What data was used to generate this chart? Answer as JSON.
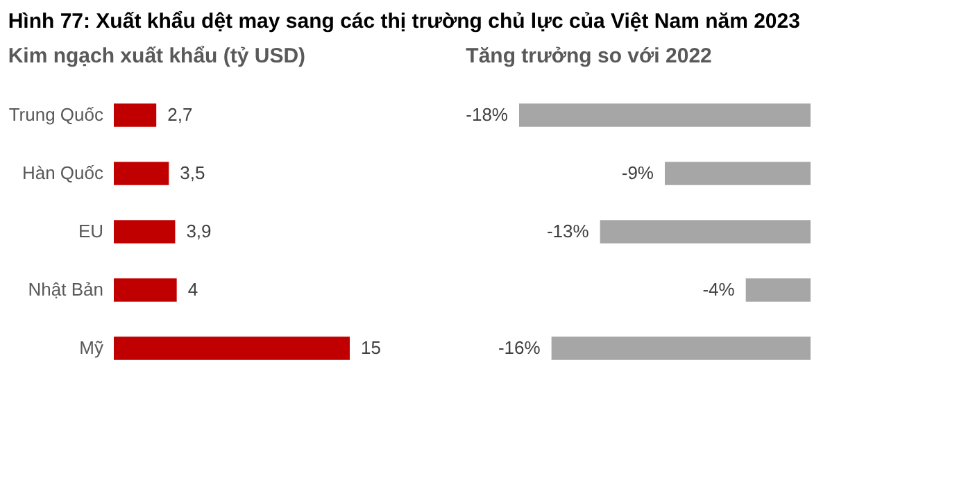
{
  "chart_data": [
    {
      "type": "bar",
      "orientation": "horizontal",
      "title": "Hình 77: Xuất khẩu dệt may sang các thị trường chủ lực của Việt Nam năm 2023",
      "subtitle": "Kim ngạch xuất khẩu (tỷ USD)",
      "categories": [
        "Trung Quốc",
        "Hàn Quốc",
        "EU",
        "Nhật Bản",
        "Mỹ"
      ],
      "series": [
        {
          "color": "#c00000",
          "values": [
            2.7,
            3.5,
            3.9,
            4,
            15
          ],
          "value_labels": [
            "2,7",
            "3,5",
            "3,9",
            "4",
            "15"
          ]
        }
      ],
      "tick_labels": "x",
      "grid": false
    },
    {
      "type": "bar",
      "orientation": "horizontal",
      "title": "Tăng trưởng so với 2022",
      "categories": [
        null,
        null,
        null,
        null,
        null
      ],
      "series": [
        {
          "color": "#a6a6a6",
          "values": [
            -18,
            -9,
            -13,
            -4,
            -16
          ],
          "value_labels": [
            "-18%",
            "-9%",
            "-13%",
            "-4%",
            "-16%"
          ]
        }
      ],
      "tick_labels": false,
      "grid": false
    }
  ]
}
